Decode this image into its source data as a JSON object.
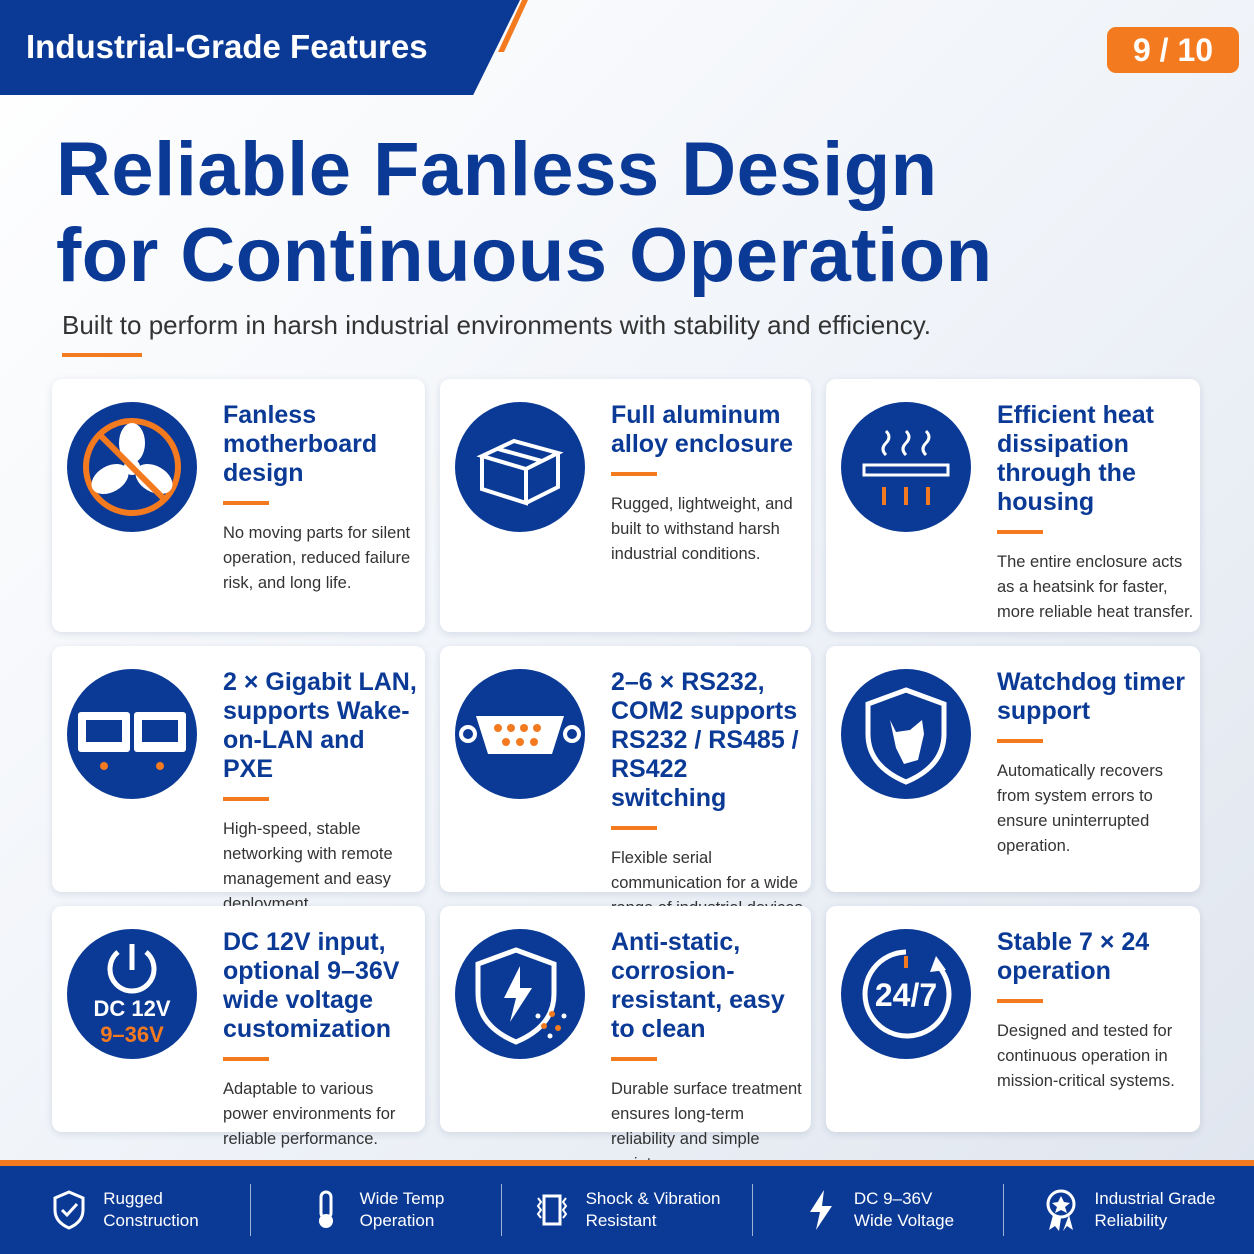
{
  "header": {
    "section": "Industrial-Grade Features",
    "page": "9 / 10",
    "title_lines": [
      "Reliable Fanless Design",
      "for Continuous Operation"
    ],
    "subtitle": "Built to perform in harsh industrial environments with stability and efficiency."
  },
  "cards": [
    {
      "title": "Fanless motherboard design",
      "description": "No moving parts for silent operation, reduced failure risk, and long life."
    },
    {
      "title": "Full aluminum alloy enclosure",
      "description": "Rugged, lightweight, and built to withstand harsh industrial conditions."
    },
    {
      "title": "Efficient heat dissipation through the housing",
      "description": "The entire enclosure acts as a heatsink for faster, more reliable heat transfer."
    },
    {
      "title": "2 × Gigabit LAN, supports Wake-on-LAN and PXE",
      "description": "High-speed, stable networking with remote management and easy deployment."
    },
    {
      "title": "2–6 × RS232, COM2 supports RS232 / RS485 / RS422 switching",
      "description": "Flexible serial communication for a wide range of industrial devices and protocols."
    },
    {
      "title": "Watchdog timer support",
      "description": "Automatically recovers from system errors to ensure uninterrupted operation."
    },
    {
      "title": "DC 12V input, optional 9–36V wide voltage customization",
      "description": "Adaptable to various power environments for reliable performance.",
      "icon_text": [
        "DC 12V",
        "9–36V"
      ]
    },
    {
      "title": "Anti-static, corrosion-resistant, easy to clean",
      "description": "Durable surface treatment ensures long-term reliability and simple maintenance."
    },
    {
      "title": "Stable 7 × 24 operation",
      "description": "Designed and tested for continuous operation in mission-critical systems.",
      "icon_text": [
        "24/7"
      ]
    }
  ],
  "footer": [
    {
      "label": [
        "Rugged",
        "Construction"
      ]
    },
    {
      "label": [
        "Wide Temp",
        "Operation"
      ]
    },
    {
      "label": [
        "Shock & Vibration",
        "Resistant"
      ]
    },
    {
      "label": [
        "DC 9–36V",
        "Wide Voltage"
      ]
    },
    {
      "label": [
        "Industrial Grade",
        "Reliability"
      ]
    }
  ]
}
